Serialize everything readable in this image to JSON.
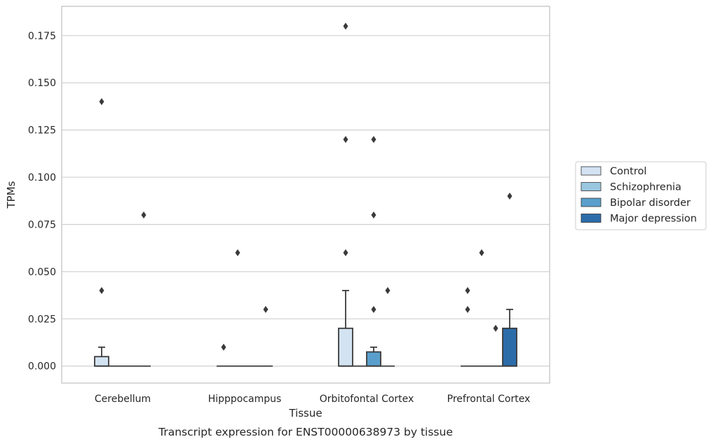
{
  "caption": "Transcript expression for ENST00000638973 by tissue",
  "colors": {
    "Control": "#d3e3f2",
    "Schizophrenia": "#9ac7e0",
    "Bipolar disorder": "#5a9fcb",
    "Major depression": "#2c6ca9",
    "box_edge": "#3a3a3a",
    "grid": "#d0d0d0",
    "flier": "#3a3a3a"
  },
  "chart_data": {
    "type": "box",
    "title": "",
    "xlabel": "Tissue",
    "ylabel": "TPMs",
    "ylim": [
      -0.009,
      0.1905
    ],
    "yticks": [
      "0.000",
      "0.025",
      "0.050",
      "0.075",
      "0.100",
      "0.125",
      "0.150",
      "0.175"
    ],
    "grid": "horizontal",
    "legend_position": "right",
    "categories": [
      "Cerebellum",
      "Hipppocampus",
      "Orbitofontal Cortex",
      "Prefrontal Cortex"
    ],
    "series": [
      {
        "name": "Control",
        "boxes": [
          {
            "q1": 0,
            "median": 0,
            "q3": 0.005,
            "whisker_low": 0,
            "whisker_high": 0.01,
            "fliers": [
              0.04,
              0.14
            ]
          },
          {
            "q1": 0,
            "median": 0,
            "q3": 0,
            "whisker_low": 0,
            "whisker_high": 0,
            "fliers": [
              0.01
            ]
          },
          {
            "q1": 0,
            "median": 0,
            "q3": 0.02,
            "whisker_low": 0,
            "whisker_high": 0.04,
            "fliers": [
              0.06,
              0.12,
              0.18
            ]
          },
          {
            "q1": 0,
            "median": 0,
            "q3": 0,
            "whisker_low": 0,
            "whisker_high": 0,
            "fliers": [
              0.03,
              0.04
            ]
          }
        ]
      },
      {
        "name": "Schizophrenia",
        "boxes": [
          {
            "q1": 0,
            "median": 0,
            "q3": 0,
            "whisker_low": 0,
            "whisker_high": 0,
            "fliers": []
          },
          {
            "q1": 0,
            "median": 0,
            "q3": 0,
            "whisker_low": 0,
            "whisker_high": 0,
            "fliers": [
              0.06
            ]
          },
          {
            "q1": 0,
            "median": 0,
            "q3": 0,
            "whisker_low": 0,
            "whisker_high": 0,
            "fliers": []
          },
          {
            "q1": 0,
            "median": 0,
            "q3": 0,
            "whisker_low": 0,
            "whisker_high": 0,
            "fliers": [
              0.06
            ]
          }
        ]
      },
      {
        "name": "Bipolar disorder",
        "boxes": [
          {
            "q1": 0,
            "median": 0,
            "q3": 0,
            "whisker_low": 0,
            "whisker_high": 0,
            "fliers": []
          },
          {
            "q1": 0,
            "median": 0,
            "q3": 0,
            "whisker_low": 0,
            "whisker_high": 0,
            "fliers": []
          },
          {
            "q1": 0,
            "median": 0,
            "q3": 0.0075,
            "whisker_low": 0,
            "whisker_high": 0.01,
            "fliers": [
              0.03,
              0.08,
              0.12
            ]
          },
          {
            "q1": 0,
            "median": 0,
            "q3": 0,
            "whisker_low": 0,
            "whisker_high": 0,
            "fliers": [
              0.02
            ]
          }
        ]
      },
      {
        "name": "Major depression",
        "boxes": [
          {
            "q1": 0,
            "median": 0,
            "q3": 0,
            "whisker_low": 0,
            "whisker_high": 0,
            "fliers": [
              0.08
            ]
          },
          {
            "q1": 0,
            "median": 0,
            "q3": 0,
            "whisker_low": 0,
            "whisker_high": 0,
            "fliers": [
              0.03
            ]
          },
          {
            "q1": 0,
            "median": 0,
            "q3": 0,
            "whisker_low": 0,
            "whisker_high": 0,
            "fliers": [
              0.04
            ]
          },
          {
            "q1": 0,
            "median": 0,
            "q3": 0.02,
            "whisker_low": 0,
            "whisker_high": 0.03,
            "fliers": [
              0.09
            ]
          }
        ]
      }
    ]
  }
}
